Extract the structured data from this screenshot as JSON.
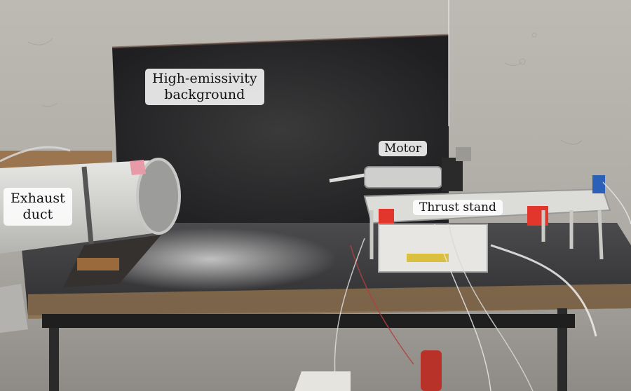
{
  "annotations": {
    "background": {
      "line1": "High-emissivity",
      "line2": "background"
    },
    "duct": {
      "line1": "Exhaust",
      "line2": "duct"
    },
    "motor": "Motor",
    "stand": "Thrust stand"
  },
  "colors": {
    "wall": "#b7b4ae",
    "panel": "#2a2a2c",
    "table_top": "#3a3a3c",
    "duct": "#d8d8d6",
    "thrust_block": "#e2362c"
  }
}
